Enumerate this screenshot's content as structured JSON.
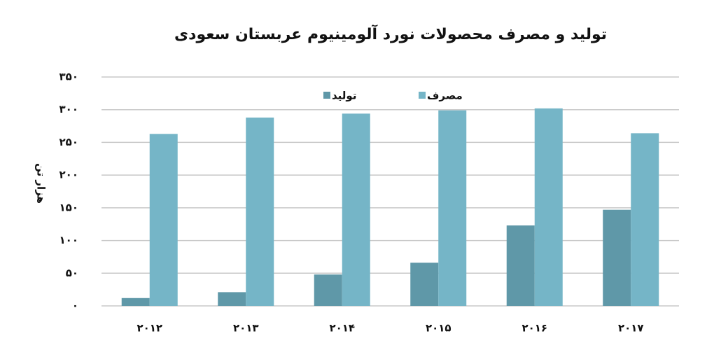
{
  "chart_data": {
    "type": "bar",
    "title": "تولید و مصرف محصولات نورد آلومینیوم عربستان سعودی",
    "y_label": "هزار تن",
    "categories": [
      "۲۰۱۲",
      "۲۰۱۳",
      "۲۰۱۴",
      "۲۰۱۵",
      "۲۰۱۶",
      "۲۰۱۷"
    ],
    "series": [
      {
        "name": "تولید",
        "color": "#5f98a8",
        "values": [
          12,
          21,
          48,
          66,
          123,
          147
        ]
      },
      {
        "name": "مصرف",
        "color": "#75b5c7",
        "values": [
          263,
          288,
          294,
          299,
          302,
          264
        ]
      }
    ],
    "ylim": [
      0,
      350
    ],
    "yticks": [
      {
        "value": 0,
        "label": "۰"
      },
      {
        "value": 50,
        "label": "۵۰"
      },
      {
        "value": 100,
        "label": "۱۰۰"
      },
      {
        "value": 150,
        "label": "۱۵۰"
      },
      {
        "value": 200,
        "label": "۲۰۰"
      },
      {
        "value": 250,
        "label": "۲۵۰"
      },
      {
        "value": 300,
        "label": "۳۰۰"
      },
      {
        "value": 350,
        "label": "۳۵۰"
      }
    ],
    "grid": true,
    "legend": "top"
  }
}
